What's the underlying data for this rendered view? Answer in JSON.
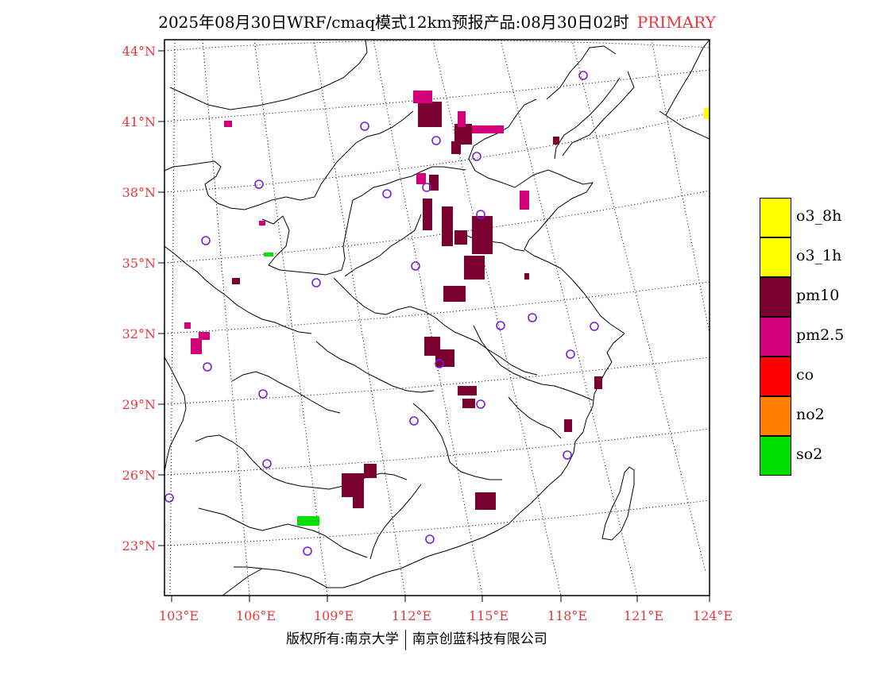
{
  "title": {
    "main": "2025年08月30日WRF/cmaq模式12km预报产品:08月30日02时",
    "highlight": "PRIMARY"
  },
  "axes": {
    "lat_labels": [
      "44°N",
      "41°N",
      "38°N",
      "35°N",
      "32°N",
      "29°N",
      "26°N",
      "23°N"
    ],
    "lon_labels": [
      "103°E",
      "106°E",
      "109°E",
      "112°E",
      "115°E",
      "118°E",
      "121°E",
      "124°E"
    ]
  },
  "legend": [
    {
      "label": "o3_8h",
      "color": "#ffff00"
    },
    {
      "label": "o3_1h",
      "color": "#ffff00"
    },
    {
      "label": "pm10",
      "color": "#7a0030"
    },
    {
      "label": "pm2.5",
      "color": "#d2007a"
    },
    {
      "label": "co",
      "color": "#ff0000"
    },
    {
      "label": "no2",
      "color": "#ff7f00"
    },
    {
      "label": "so2",
      "color": "#00e000"
    }
  ],
  "footer": {
    "left": "版权所有:南京大学",
    "right": "南京创蓝科技有限公司"
  },
  "colors": {
    "pm10": "#7a0030",
    "pm25": "#d2007a",
    "so2": "#00e000",
    "station": "#7a1fd6",
    "label": "#e8383d"
  }
}
